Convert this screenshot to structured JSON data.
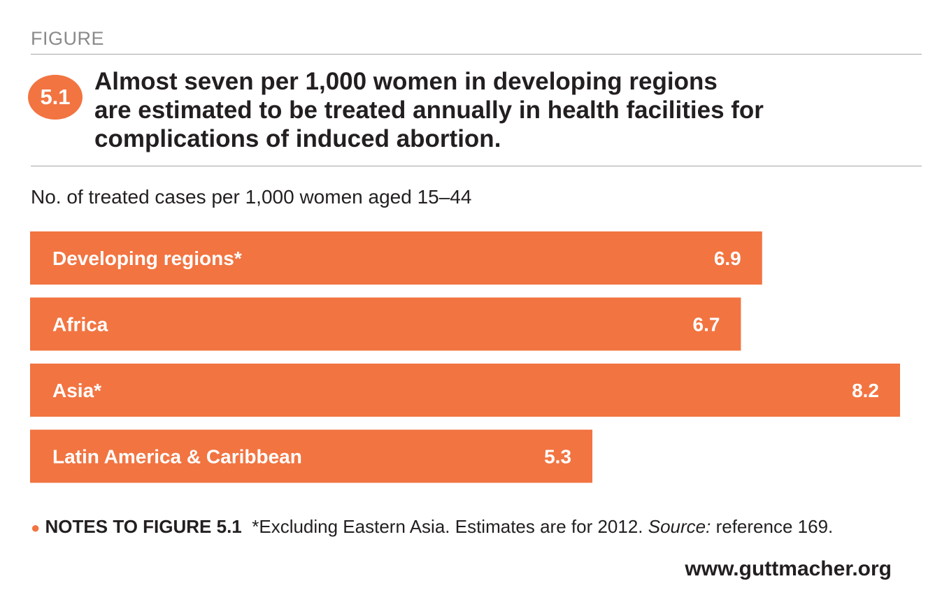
{
  "figure_label": "FIGURE",
  "badge": "5.1",
  "title_lines": [
    "Almost seven per 1,000 women in developing regions",
    "are estimated to be treated annually in health facilities for",
    "complications of induced abortion."
  ],
  "colors": {
    "bar": "#f27441",
    "bar_text": "#ffffff",
    "rule": "#a6a6a6"
  },
  "chart_data": {
    "type": "bar",
    "orientation": "horizontal",
    "title": "Almost seven per 1,000 women in developing regions are estimated to be treated annually in health facilities for complications of induced abortion.",
    "subtitle": "No. of treated cases per 1,000 women aged 15–44",
    "categories": [
      "Developing regions*",
      "Africa",
      "Asia*",
      "Latin America & Caribbean"
    ],
    "values": [
      6.9,
      6.7,
      8.2,
      5.3
    ],
    "value_labels": [
      "6.9",
      "6.7",
      "8.2",
      "5.3"
    ],
    "xlim": [
      0,
      8.2
    ],
    "grid": false,
    "legend": "none"
  },
  "notes": {
    "head": "NOTES TO FIGURE 5.1",
    "text_before_source": "*Excluding Eastern Asia. Estimates are for 2012. ",
    "source_label": "Source:",
    "text_after_source": " reference 169."
  },
  "url": "www.guttmacher.org"
}
